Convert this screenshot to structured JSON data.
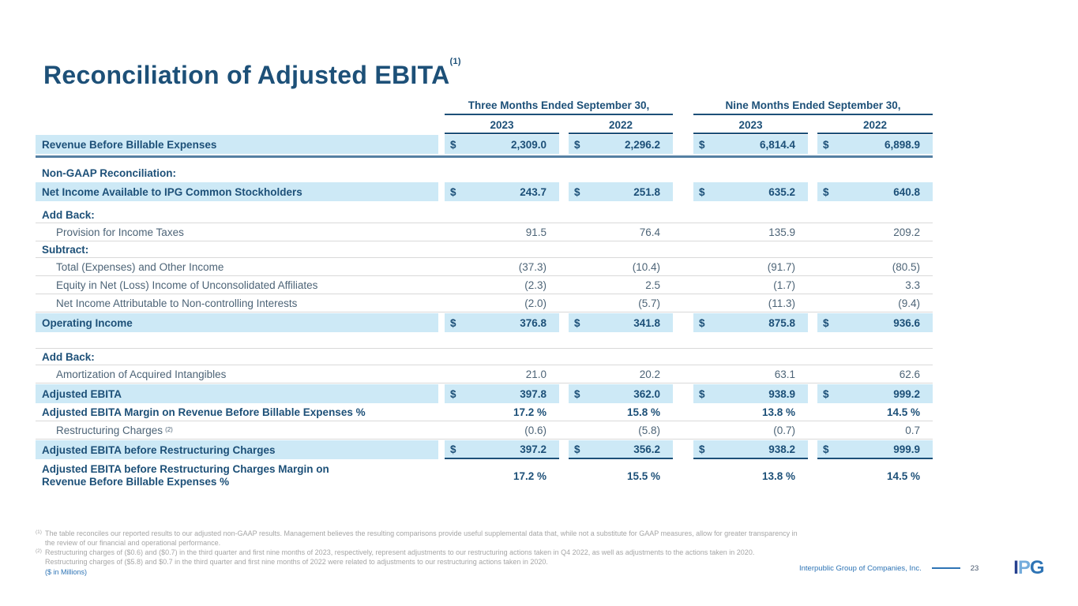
{
  "title": {
    "text": "Reconciliation of Adjusted EBITA",
    "footnote_ref": "(1)"
  },
  "table": {
    "currency_symbol": "$",
    "groups": [
      {
        "label": "Three Months Ended September 30,"
      },
      {
        "label": "Nine Months Ended September 30,"
      }
    ],
    "years": [
      "2023",
      "2022",
      "2023",
      "2022"
    ],
    "rows": [
      {
        "type": "total",
        "label": "Revenue Before Billable Expenses",
        "dollar": true,
        "values": [
          "2,309.0",
          "2,296.2",
          "6,814.4",
          "6,898.9"
        ],
        "after": "thick-rule"
      },
      {
        "type": "section",
        "label": "Non-GAAP Reconciliation:"
      },
      {
        "type": "total",
        "label": "Net Income Available to IPG Common Stockholders",
        "dollar": true,
        "values": [
          "243.7",
          "251.8",
          "635.2",
          "640.8"
        ],
        "after": "spacer-sm"
      },
      {
        "type": "section",
        "label": "Add Back:",
        "rule": true
      },
      {
        "type": "item",
        "label": "Provision for Income Taxes",
        "values": [
          "91.5",
          "76.4",
          "135.9",
          "209.2"
        ],
        "rule": true
      },
      {
        "type": "section",
        "label": "Subtract:",
        "rule": true
      },
      {
        "type": "item",
        "label": "Total (Expenses) and Other Income",
        "values": [
          "(37.3)",
          "(10.4)",
          "(91.7)",
          "(80.5)"
        ],
        "rule": true
      },
      {
        "type": "item",
        "label": "Equity in Net (Loss) Income of Unconsolidated Affiliates",
        "values": [
          "(2.3)",
          "2.5",
          "(1.7)",
          "3.3"
        ],
        "rule": true
      },
      {
        "type": "item",
        "label": "Net Income Attributable to Non-controlling Interests",
        "values": [
          "(2.0)",
          "(5.7)",
          "(11.3)",
          "(9.4)"
        ],
        "rule": true
      },
      {
        "type": "total",
        "label": "Operating Income",
        "dollar": true,
        "values": [
          "376.8",
          "341.8",
          "875.8",
          "936.6"
        ],
        "after": "spacer-rule"
      },
      {
        "type": "section",
        "label": "Add Back:",
        "rule": true
      },
      {
        "type": "item",
        "label": "Amortization of Acquired Intangibles",
        "values": [
          "21.0",
          "20.2",
          "63.1",
          "62.6"
        ],
        "rule": true
      },
      {
        "type": "total",
        "label": "Adjusted EBITA",
        "dollar": true,
        "values": [
          "397.8",
          "362.0",
          "938.9",
          "999.2"
        ]
      },
      {
        "type": "bold",
        "label": "Adjusted EBITA Margin on Revenue Before Billable Expenses %",
        "values": [
          "17.2 %",
          "15.8 %",
          "13.8 %",
          "14.5 %"
        ],
        "rule": true
      },
      {
        "type": "item",
        "label": "Restructuring Charges",
        "label_sup": "(2)",
        "values": [
          "(0.6)",
          "(5.8)",
          "(0.7)",
          "0.7"
        ],
        "rule": true
      },
      {
        "type": "total",
        "label": "Adjusted EBITA before Restructuring Charges",
        "dollar": true,
        "underline": true,
        "values": [
          "397.2",
          "356.2",
          "938.2",
          "999.9"
        ]
      },
      {
        "type": "bold",
        "label": "Adjusted EBITA before Restructuring Charges Margin on Revenue Before Billable Expenses %",
        "values": [
          "17.2 %",
          "15.5 %",
          "13.8 %",
          "14.5 %"
        ],
        "wrap": true
      }
    ]
  },
  "footnotes": [
    {
      "marker": "(1)",
      "text": "The table reconciles our reported results to our adjusted non-GAAP results. Management believes the resulting comparisons provide useful supplemental data that, while not a substitute for GAAP measures, allow for greater transparency in the review of our financial and operational performance."
    },
    {
      "marker": "(2)",
      "text": "Restructuring charges of ($0.6) and ($0.7) in the third quarter and first nine months of 2023, respectively, represent adjustments to our restructuring actions taken in Q4 2022, as well as adjustments to the actions taken in 2020. Restructuring charges of ($5.8) and $0.7 in the third quarter and first nine months of 2022 were related to adjustments to our restructuring actions taken in 2020."
    }
  ],
  "units_note": "($ in Millions)",
  "footer": {
    "company": "Interpublic Group of Companies, Inc.",
    "page": "23",
    "logo_letters": [
      "I",
      "P",
      "G"
    ]
  },
  "colors": {
    "navy": "#1d5078",
    "item": "#4d6477",
    "highlight": "#cde9f6",
    "steel_rule": "#5580a3",
    "accent_blue": "#2e74b5"
  }
}
